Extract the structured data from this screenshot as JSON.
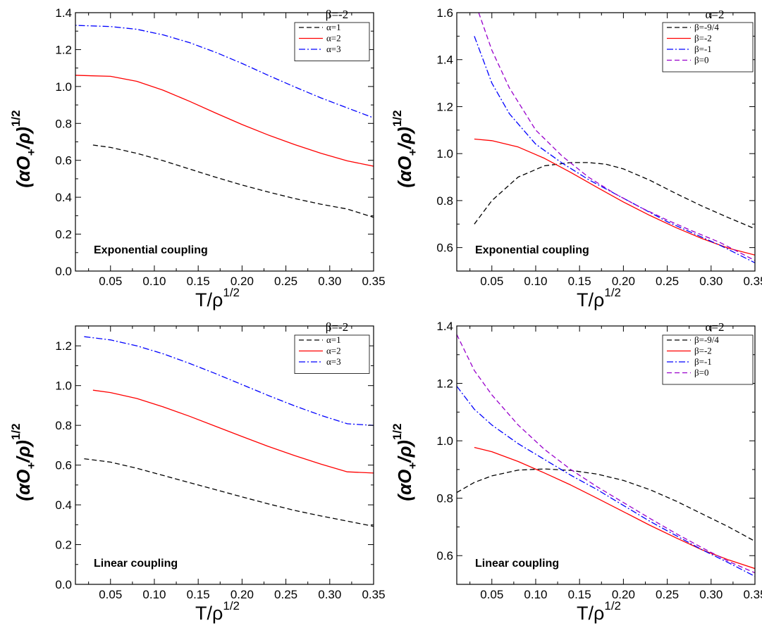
{
  "chart_data": [
    {
      "type": "line",
      "xlabel": "T/ρ",
      "xlabel_sup": "1/2",
      "ylabel": "(αO",
      "ylabel_sub": "+",
      "ylabel_tail": "/ρ)",
      "ylabel_sup": "1/2",
      "xlim": [
        0.01,
        0.35
      ],
      "ylim": [
        0.0,
        1.4
      ],
      "x_ticks": [
        "0.05",
        "0.10",
        "0.15",
        "0.20",
        "0.25",
        "0.30",
        "0.35"
      ],
      "y_ticks": [
        "0.0",
        "0.2",
        "0.4",
        "0.6",
        "0.8",
        "1.0",
        "1.2",
        "1.4"
      ],
      "legend_title": "β=-2",
      "legend_position": "top-right",
      "annotation": "Exponential coupling",
      "series": [
        {
          "name": "α=1",
          "color": "#000000",
          "dash": "dashed",
          "x": [
            0.03,
            0.05,
            0.08,
            0.11,
            0.14,
            0.17,
            0.2,
            0.23,
            0.26,
            0.29,
            0.32,
            0.35
          ],
          "y": [
            0.683,
            0.67,
            0.638,
            0.598,
            0.553,
            0.508,
            0.466,
            0.428,
            0.393,
            0.362,
            0.336,
            0.291
          ]
        },
        {
          "name": "α=2",
          "color": "#ff0000",
          "dash": "solid",
          "x": [
            0.0,
            0.05,
            0.08,
            0.11,
            0.14,
            0.17,
            0.2,
            0.23,
            0.26,
            0.29,
            0.32,
            0.35
          ],
          "y": [
            1.062,
            1.055,
            1.028,
            0.98,
            0.92,
            0.856,
            0.794,
            0.737,
            0.685,
            0.638,
            0.597,
            0.568
          ]
        },
        {
          "name": "α=3",
          "color": "#0000ff",
          "dash": "dashdot",
          "x": [
            0.0,
            0.05,
            0.08,
            0.11,
            0.14,
            0.17,
            0.2,
            0.23,
            0.26,
            0.29,
            0.32,
            0.35
          ],
          "y": [
            1.333,
            1.325,
            1.31,
            1.28,
            1.238,
            1.185,
            1.125,
            1.06,
            0.998,
            0.938,
            0.884,
            0.83
          ]
        }
      ]
    },
    {
      "type": "line",
      "xlabel": "T/ρ",
      "xlabel_sup": "1/2",
      "ylabel": "(αO",
      "ylabel_sub": "+",
      "ylabel_tail": "/ρ)",
      "ylabel_sup": "1/2",
      "xlim": [
        0.01,
        0.35
      ],
      "ylim": [
        0.5,
        1.6
      ],
      "x_ticks": [
        "0.05",
        "0.10",
        "0.15",
        "0.20",
        "0.25",
        "0.30",
        "0.35"
      ],
      "y_ticks": [
        "0.6",
        "0.8",
        "1.0",
        "1.2",
        "1.4",
        "1.6"
      ],
      "legend_title": "α=2",
      "legend_position": "top-right",
      "annotation": "Exponential coupling",
      "series": [
        {
          "name": "β=-9/4",
          "color": "#000000",
          "dash": "dashed",
          "x": [
            0.03,
            0.05,
            0.08,
            0.11,
            0.14,
            0.16,
            0.18,
            0.2,
            0.23,
            0.26,
            0.29,
            0.32,
            0.35
          ],
          "y": [
            0.7,
            0.8,
            0.9,
            0.948,
            0.962,
            0.962,
            0.955,
            0.935,
            0.887,
            0.83,
            0.776,
            0.727,
            0.68
          ]
        },
        {
          "name": "β=-2",
          "color": "#ff0000",
          "dash": "solid",
          "x": [
            0.03,
            0.05,
            0.08,
            0.11,
            0.14,
            0.17,
            0.2,
            0.23,
            0.26,
            0.29,
            0.32,
            0.35
          ],
          "y": [
            1.062,
            1.055,
            1.028,
            0.98,
            0.92,
            0.856,
            0.794,
            0.737,
            0.685,
            0.638,
            0.597,
            0.568
          ]
        },
        {
          "name": "β=-1",
          "color": "#0000ff",
          "dash": "dashdot",
          "x": [
            0.03,
            0.05,
            0.07,
            0.1,
            0.13,
            0.16,
            0.19,
            0.22,
            0.25,
            0.28,
            0.31,
            0.35
          ],
          "y": [
            1.5,
            1.3,
            1.17,
            1.04,
            0.96,
            0.89,
            0.83,
            0.77,
            0.71,
            0.66,
            0.61,
            0.535
          ]
        },
        {
          "name": "β=0",
          "color": "#9900cc",
          "dash": "dashed",
          "x": [
            0.035,
            0.05,
            0.07,
            0.1,
            0.13,
            0.16,
            0.19,
            0.22,
            0.25,
            0.28,
            0.31,
            0.35
          ],
          "y": [
            1.6,
            1.44,
            1.28,
            1.1,
            0.99,
            0.9,
            0.83,
            0.77,
            0.717,
            0.668,
            0.622,
            0.545
          ]
        }
      ]
    },
    {
      "type": "line",
      "xlabel": "T/ρ",
      "xlabel_sup": "1/2",
      "ylabel": "(αO",
      "ylabel_sub": "+",
      "ylabel_tail": "/ρ)",
      "ylabel_sup": "1/2",
      "xlim": [
        0.01,
        0.35
      ],
      "ylim": [
        0.0,
        1.3
      ],
      "x_ticks": [
        "0.05",
        "0.10",
        "0.15",
        "0.20",
        "0.25",
        "0.30",
        "0.35"
      ],
      "y_ticks": [
        "0.0",
        "0.2",
        "0.4",
        "0.6",
        "0.8",
        "1.0",
        "1.2"
      ],
      "legend_title": "β=-2",
      "legend_position": "top-right",
      "annotation": "Linear coupling",
      "series": [
        {
          "name": "α=1",
          "color": "#000000",
          "dash": "dashed",
          "x": [
            0.02,
            0.05,
            0.08,
            0.11,
            0.14,
            0.17,
            0.2,
            0.23,
            0.26,
            0.29,
            0.32,
            0.35
          ],
          "y": [
            0.632,
            0.615,
            0.584,
            0.548,
            0.512,
            0.476,
            0.44,
            0.405,
            0.372,
            0.344,
            0.318,
            0.292
          ]
        },
        {
          "name": "α=2",
          "color": "#ff0000",
          "dash": "solid",
          "x": [
            0.03,
            0.05,
            0.08,
            0.11,
            0.14,
            0.17,
            0.2,
            0.23,
            0.26,
            0.29,
            0.32,
            0.35
          ],
          "y": [
            0.977,
            0.965,
            0.935,
            0.893,
            0.846,
            0.795,
            0.744,
            0.694,
            0.648,
            0.605,
            0.566,
            0.56
          ]
        },
        {
          "name": "α=3",
          "color": "#0000ff",
          "dash": "dashdot",
          "x": [
            0.02,
            0.05,
            0.08,
            0.11,
            0.14,
            0.17,
            0.2,
            0.23,
            0.26,
            0.29,
            0.32,
            0.35
          ],
          "y": [
            1.246,
            1.23,
            1.2,
            1.16,
            1.112,
            1.06,
            1.005,
            0.95,
            0.898,
            0.85,
            0.808,
            0.8
          ]
        }
      ]
    },
    {
      "type": "line",
      "xlabel": "T/ρ",
      "xlabel_sup": "1/2",
      "ylabel": "(αO",
      "ylabel_sub": "+",
      "ylabel_tail": "/ρ)",
      "ylabel_sup": "1/2",
      "xlim": [
        0.01,
        0.35
      ],
      "ylim": [
        0.5,
        1.4
      ],
      "x_ticks": [
        "0.05",
        "0.10",
        "0.15",
        "0.20",
        "0.25",
        "0.30",
        "0.35"
      ],
      "y_ticks": [
        "0.6",
        "0.8",
        "1.0",
        "1.2",
        "1.4"
      ],
      "legend_title": "α=2",
      "legend_position": "top-right",
      "annotation": "Linear coupling",
      "series": [
        {
          "name": "β=-9/4",
          "color": "#000000",
          "dash": "dashed",
          "x": [
            0.01,
            0.03,
            0.05,
            0.08,
            0.11,
            0.14,
            0.17,
            0.2,
            0.23,
            0.26,
            0.29,
            0.32,
            0.35
          ],
          "y": [
            0.82,
            0.855,
            0.878,
            0.898,
            0.902,
            0.897,
            0.884,
            0.862,
            0.83,
            0.79,
            0.745,
            0.7,
            0.65
          ]
        },
        {
          "name": "β=-2",
          "color": "#ff0000",
          "dash": "solid",
          "x": [
            0.03,
            0.05,
            0.08,
            0.11,
            0.14,
            0.17,
            0.2,
            0.23,
            0.26,
            0.29,
            0.32,
            0.35
          ],
          "y": [
            0.977,
            0.962,
            0.928,
            0.888,
            0.846,
            0.8,
            0.753,
            0.706,
            0.662,
            0.62,
            0.585,
            0.555
          ]
        },
        {
          "name": "β=-1",
          "color": "#0000ff",
          "dash": "dashdot",
          "x": [
            0.01,
            0.03,
            0.05,
            0.08,
            0.11,
            0.14,
            0.17,
            0.2,
            0.23,
            0.26,
            0.29,
            0.32,
            0.35
          ],
          "y": [
            1.19,
            1.11,
            1.055,
            0.99,
            0.935,
            0.88,
            0.83,
            0.775,
            0.72,
            0.67,
            0.62,
            0.575,
            0.528
          ]
        },
        {
          "name": "β=0",
          "color": "#9900cc",
          "dash": "dashed",
          "x": [
            0.01,
            0.03,
            0.05,
            0.08,
            0.11,
            0.14,
            0.17,
            0.2,
            0.23,
            0.26,
            0.29,
            0.32,
            0.35
          ],
          "y": [
            1.37,
            1.245,
            1.16,
            1.055,
            0.97,
            0.9,
            0.84,
            0.785,
            0.73,
            0.677,
            0.627,
            0.58,
            0.54
          ]
        }
      ]
    }
  ]
}
